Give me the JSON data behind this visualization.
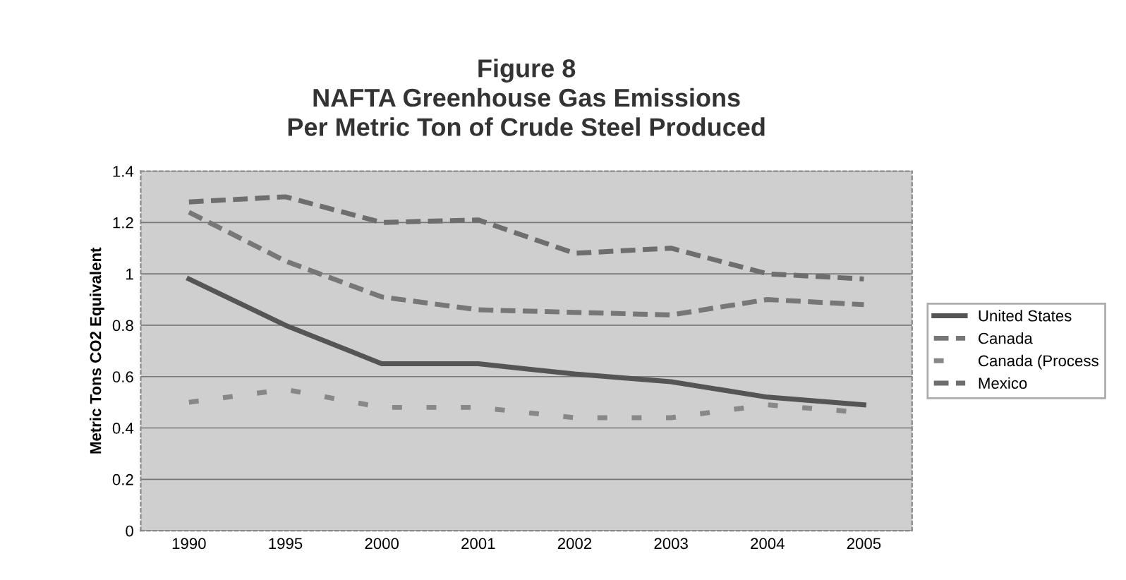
{
  "chart_data": {
    "type": "line",
    "title": "Figure 8\nNAFTA Greenhouse Gas Emissions\nPer Metric Ton of Crude Steel Produced",
    "ylabel": "Metric Tons CO2 Equivalent",
    "categories": [
      "1990",
      "1995",
      "2000",
      "2001",
      "2002",
      "2003",
      "2004",
      "2005"
    ],
    "series": [
      {
        "name": "United States",
        "color": "#555555",
        "line_style": "solid",
        "values": [
          0.98,
          0.8,
          0.65,
          0.65,
          0.61,
          0.58,
          0.52,
          0.49
        ]
      },
      {
        "name": "Canada",
        "color": "#777777",
        "line_style": "dashed",
        "values": [
          1.24,
          1.05,
          0.91,
          0.86,
          0.85,
          0.84,
          0.9,
          0.88
        ]
      },
      {
        "name": "Canada (Process",
        "color": "#888888",
        "line_style": "dotted",
        "values": [
          0.5,
          0.55,
          0.48,
          0.48,
          0.44,
          0.44,
          0.49,
          0.46
        ]
      },
      {
        "name": "Mexico",
        "color": "#6e6e6e",
        "line_style": "dashed",
        "values": [
          1.28,
          1.3,
          1.2,
          1.21,
          1.08,
          1.1,
          1.0,
          0.98
        ]
      }
    ],
    "ylim": [
      0,
      1.4
    ],
    "yticks": [
      0,
      {
        "value": 0.2,
        "label": "0.2"
      },
      {
        "value": 0.4,
        "label": "0.4"
      },
      {
        "value": 0.6,
        "label": "0.6"
      },
      {
        "value": 0.8,
        "label": "0.8"
      },
      1,
      {
        "value": 1.2,
        "label": "1.2"
      },
      {
        "value": 1.4,
        "label": "1.4"
      }
    ],
    "grid": "y",
    "legend": "right",
    "marker": "none"
  }
}
